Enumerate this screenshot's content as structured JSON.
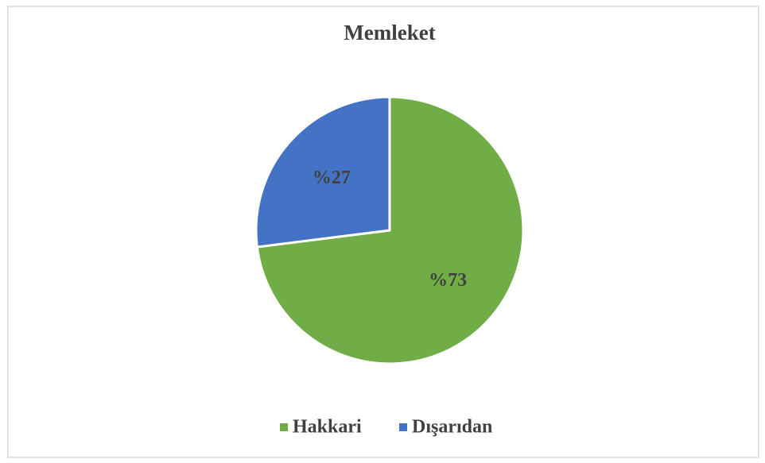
{
  "chart_data": {
    "type": "pie",
    "title": "Memleket",
    "categories": [
      "Hakkari",
      "Dışarıdan"
    ],
    "values": [
      73,
      27
    ],
    "value_labels": [
      "%73",
      "%27"
    ],
    "colors": [
      "#70ad47",
      "#4472c4"
    ],
    "legend": "bottom"
  }
}
